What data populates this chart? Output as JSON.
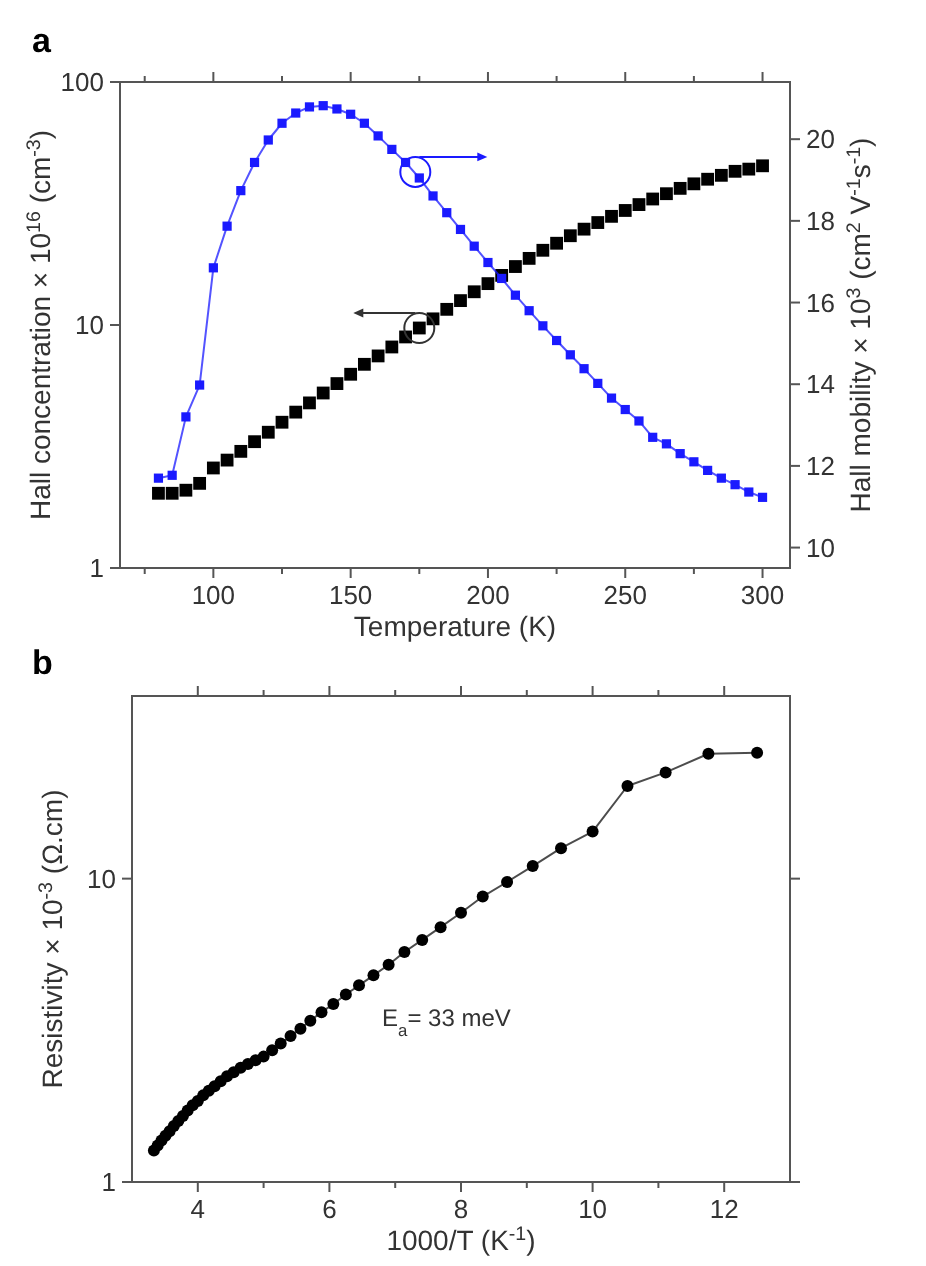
{
  "chart_data": [
    {
      "type": "scatter",
      "title": "a",
      "xlabel": "Temperature (K)",
      "ylabel": "Hall concentration × 10$^{16}$ (cm$^{-3}$)",
      "y2label": "Hall mobility × 10$^{3}$ (cm$^{2}$ V$^{-1}$s$^{-1}$)",
      "log": "y",
      "marker": "square",
      "grid": false,
      "x": [
        80,
        85,
        90,
        95,
        100,
        105,
        110,
        115,
        120,
        125,
        130,
        135,
        140,
        145,
        150,
        155,
        160,
        165,
        170,
        175,
        180,
        185,
        190,
        195,
        200,
        205,
        210,
        215,
        220,
        225,
        230,
        235,
        240,
        245,
        250,
        255,
        260,
        265,
        270,
        275,
        280,
        285,
        290,
        295,
        300
      ],
      "xlim": [
        66,
        310
      ],
      "xticks": [
        {
          "value": 75,
          "label": null
        },
        100,
        {
          "value": 125,
          "label": null
        },
        150,
        {
          "value": 175,
          "label": null
        },
        200,
        {
          "value": 225,
          "label": null
        },
        250,
        {
          "value": 275,
          "label": null
        },
        300
      ],
      "ylim": [
        1,
        100
      ],
      "yticks": [
        1,
        10,
        100
      ],
      "y2lim": [
        9.5,
        21.4
      ],
      "y2ticks": [
        10,
        12,
        14,
        16,
        18,
        20
      ],
      "series": [
        {
          "color": "#000000",
          "values": [
            2.03,
            2.03,
            2.09,
            2.23,
            2.58,
            2.78,
            3.02,
            3.31,
            3.62,
            3.98,
            4.38,
            4.78,
            5.25,
            5.74,
            6.27,
            6.89,
            7.46,
            8.12,
            8.93,
            9.72,
            10.6,
            11.6,
            12.6,
            13.7,
            14.8,
            16.0,
            17.4,
            18.8,
            20.3,
            21.7,
            23.3,
            24.8,
            26.4,
            28.0,
            29.6,
            31.3,
            33.0,
            34.7,
            36.5,
            38.1,
            39.8,
            41.3,
            42.9,
            43.8,
            45.2
          ]
        },
        {
          "type": "line",
          "color": "#1a1aff",
          "line_style": "solid",
          "axis": "y2",
          "values": [
            11.7,
            11.77,
            13.2,
            13.98,
            16.85,
            17.87,
            18.74,
            19.43,
            19.98,
            20.39,
            20.64,
            20.79,
            20.82,
            20.74,
            20.61,
            20.39,
            20.08,
            19.75,
            19.43,
            19.05,
            18.61,
            18.2,
            17.79,
            17.38,
            16.98,
            16.59,
            16.18,
            15.8,
            15.43,
            15.07,
            14.72,
            14.38,
            14.02,
            13.66,
            13.38,
            13.1,
            12.7,
            12.54,
            12.3,
            12.1,
            11.89,
            11.7,
            11.54,
            11.36,
            11.23
          ]
        }
      ]
    },
    {
      "type": "line",
      "title": "b",
      "xlabel": "1000/T (K$^{-1}$)",
      "ylabel": "Resistivity × 10$^{-3}$ (Ω.cm)",
      "log": "y",
      "marker": "circle",
      "line_style": "solid",
      "grid": false,
      "annotations": [
        "E$_{a}$= 33 meV"
      ],
      "xlim": [
        3,
        13
      ],
      "xticks": [
        4,
        {
          "value": 5,
          "label": null
        },
        6,
        {
          "value": 7,
          "label": null
        },
        8,
        {
          "value": 9,
          "label": null
        },
        10,
        {
          "value": 11,
          "label": null
        },
        12
      ],
      "ylim": [
        1,
        40
      ],
      "yticks": [
        1,
        10
      ],
      "series": [
        {
          "color": "#000000",
          "x": [
            12.5,
            11.76,
            11.11,
            10.53,
            10,
            9.52,
            9.09,
            8.7,
            8.33,
            8,
            7.69,
            7.41,
            7.14,
            6.9,
            6.67,
            6.45,
            6.25,
            6.06,
            5.88,
            5.71,
            5.56,
            5.41,
            5.26,
            5.13,
            5.0,
            4.878,
            4.762,
            4.651,
            4.545,
            4.444,
            4.348,
            4.255,
            4.167,
            4.082,
            4.0,
            3.922,
            3.846,
            3.774,
            3.704,
            3.636,
            3.571,
            3.509,
            3.448,
            3.39,
            3.333
          ],
          "values": [
            26.0,
            25.8,
            22.4,
            20.2,
            14.3,
            12.6,
            11.0,
            9.75,
            8.73,
            7.72,
            6.92,
            6.28,
            5.73,
            5.2,
            4.8,
            4.45,
            4.15,
            3.86,
            3.63,
            3.4,
            3.2,
            3.03,
            2.86,
            2.72,
            2.59,
            2.52,
            2.45,
            2.38,
            2.3,
            2.23,
            2.15,
            2.07,
            2.0,
            1.93,
            1.85,
            1.79,
            1.72,
            1.65,
            1.59,
            1.53,
            1.47,
            1.42,
            1.37,
            1.32,
            1.27
          ]
        }
      ]
    }
  ]
}
